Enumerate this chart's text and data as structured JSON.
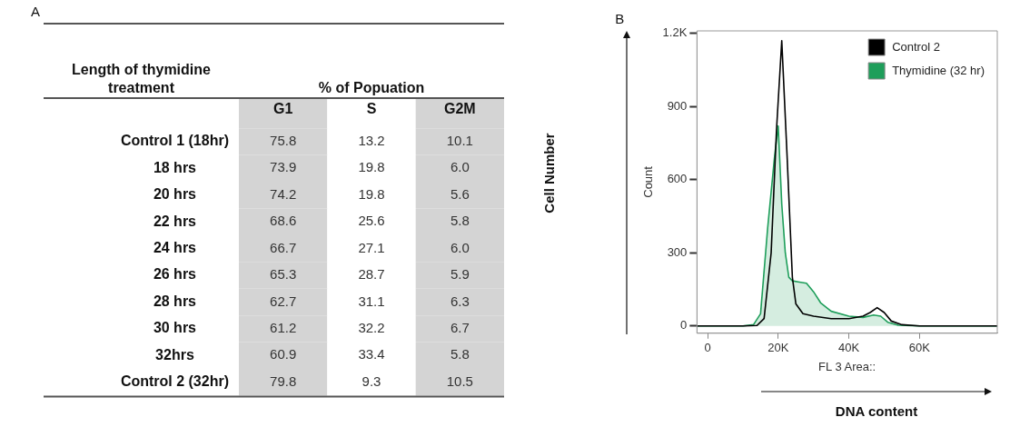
{
  "chart_data": [
    {
      "type": "heatmap",
      "title": "A",
      "ylabel": "Length of thymidine treatment",
      "xlabel": "% of Popuation",
      "categories": [
        "G1",
        "S",
        "G2M"
      ],
      "y_categories": [
        "Control 1 (18hr)",
        "18 hrs",
        "20 hrs",
        "22 hrs",
        "24 hrs",
        "26 hrs",
        "28 hrs",
        "30 hrs",
        "32hrs",
        "Control 2 (32hr)"
      ],
      "cells": [
        [
          75.8,
          13.2,
          10.1
        ],
        [
          73.9,
          19.8,
          6.0
        ],
        [
          74.2,
          19.8,
          5.6
        ],
        [
          68.6,
          25.6,
          5.8
        ],
        [
          66.7,
          27.1,
          6.0
        ],
        [
          65.3,
          28.7,
          5.9
        ],
        [
          62.7,
          31.1,
          6.3
        ],
        [
          61.2,
          32.2,
          6.7
        ],
        [
          60.9,
          33.4,
          5.8
        ],
        [
          79.8,
          9.3,
          10.5
        ]
      ],
      "cell_labels": [
        [
          "75.8",
          "13.2",
          "10.1"
        ],
        [
          "73.9",
          "19.8",
          "6.0"
        ],
        [
          "74.2",
          "19.8",
          "5.6"
        ],
        [
          "68.6",
          "25.6",
          "5.8"
        ],
        [
          "66.7",
          "27.1",
          "6.0"
        ],
        [
          "65.3",
          "28.7",
          "5.9"
        ],
        [
          "62.7",
          "31.1",
          "6.3"
        ],
        [
          "61.2",
          "32.2",
          "6.7"
        ],
        [
          "60.9",
          "33.4",
          "5.8"
        ],
        [
          "79.8",
          "9.3",
          "10.5"
        ]
      ],
      "colors": [
        "#d4d4d4",
        "#ffffff",
        "#d4d4d4"
      ],
      "data_labels": true
    },
    {
      "type": "line",
      "title": "B",
      "xlabel": "FL 3 Area::",
      "ylabel": "Count",
      "annotations": [
        "Cell Number",
        "DNA content"
      ],
      "xlim": [
        -3000,
        82000
      ],
      "xticks": [
        0,
        {
          "value": 20000,
          "label": "20K"
        },
        {
          "value": 40000,
          "label": "40K"
        },
        {
          "value": 60000,
          "label": "60K"
        }
      ],
      "ylim": [
        -30,
        1210
      ],
      "yticks": [
        0,
        300,
        600,
        900,
        {
          "value": 1200,
          "label": "1.2K"
        }
      ],
      "legend": "top right",
      "grid": false,
      "marker": "none",
      "line_style": "solid",
      "series": [
        {
          "name": "Control 2",
          "color": "#000000",
          "x": [
            -3000,
            10000,
            14000,
            16000,
            18000,
            19500,
            21000,
            22500,
            24000,
            25000,
            27000,
            30000,
            35000,
            40000,
            44000,
            46000,
            48000,
            50000,
            52000,
            55000,
            60000,
            82000
          ],
          "values": [
            0,
            0,
            2,
            30,
            300,
            800,
            1170,
            700,
            200,
            90,
            50,
            40,
            30,
            30,
            40,
            55,
            75,
            55,
            20,
            5,
            0,
            0
          ]
        },
        {
          "name": "Thymidine (32 hr)",
          "type": "area",
          "color": "#1e9e5a",
          "x": [
            -3000,
            10000,
            13000,
            15000,
            17000,
            19000,
            20000,
            21000,
            22000,
            23000,
            24000,
            26000,
            28000,
            30000,
            32000,
            35000,
            40000,
            44000,
            47000,
            49000,
            51000,
            54000,
            60000,
            82000
          ],
          "values": [
            0,
            0,
            5,
            50,
            400,
            700,
            820,
            500,
            300,
            200,
            185,
            180,
            175,
            140,
            95,
            60,
            40,
            35,
            45,
            40,
            15,
            3,
            0,
            0
          ]
        }
      ]
    }
  ]
}
